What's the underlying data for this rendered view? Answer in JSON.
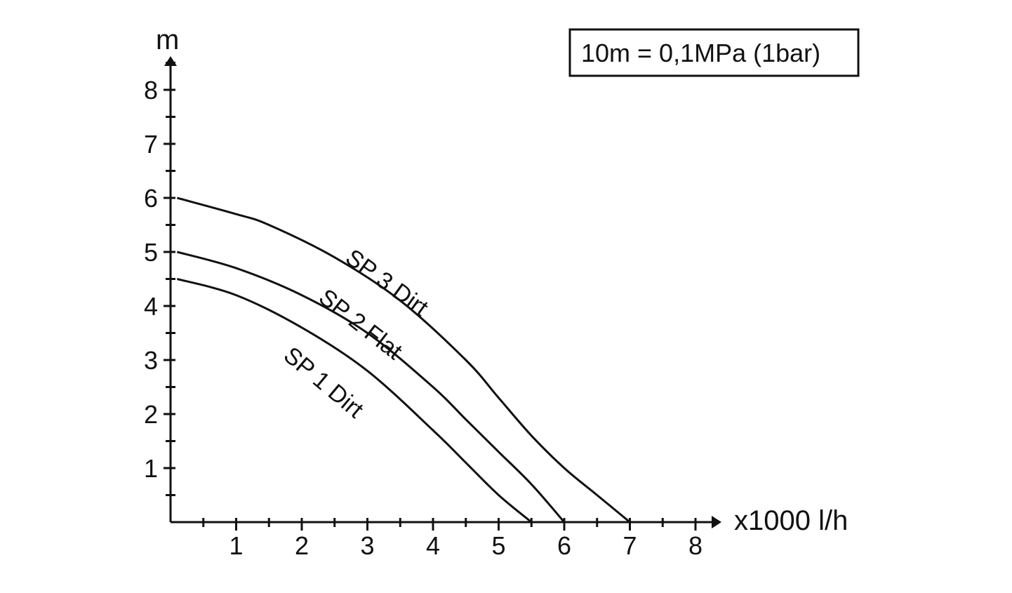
{
  "chart_data": {
    "type": "line",
    "xlabel": "x1000 l/h",
    "ylabel": "m",
    "xlim": [
      0,
      8.5
    ],
    "ylim": [
      0,
      8.5
    ],
    "x_ticks": [
      1,
      2,
      3,
      4,
      5,
      6,
      7,
      8
    ],
    "y_ticks": [
      1,
      2,
      3,
      4,
      5,
      6,
      7,
      8
    ],
    "x_tick_labels": [
      "1",
      "2",
      "3",
      "4",
      "5",
      "6",
      "7",
      "8"
    ],
    "y_tick_labels": [
      "1",
      "2",
      "3",
      "4",
      "5",
      "6",
      "7",
      "8"
    ],
    "annotation": "10m = 0,1MPa (1bar)",
    "grid": false,
    "series": [
      {
        "name": "SP 3 Dirt",
        "x": [
          0.1,
          1,
          1.5,
          2.5,
          3.5,
          4.5,
          5.0,
          5.5,
          6.0,
          6.5,
          7.0
        ],
        "y": [
          6.0,
          5.7,
          5.5,
          4.9,
          4.1,
          3.0,
          2.3,
          1.6,
          1.0,
          0.5,
          0.0
        ]
      },
      {
        "name": "SP 2 Flat",
        "x": [
          0.1,
          1,
          2,
          3,
          4,
          4.5,
          5.0,
          5.5,
          6.0
        ],
        "y": [
          5.0,
          4.7,
          4.2,
          3.5,
          2.5,
          1.9,
          1.3,
          0.7,
          0.0
        ]
      },
      {
        "name": "SP 1 Dirt",
        "x": [
          0.1,
          1,
          2,
          3,
          4,
          4.5,
          5.0,
          5.5
        ],
        "y": [
          4.5,
          4.2,
          3.6,
          2.8,
          1.7,
          1.1,
          0.5,
          0.0
        ]
      }
    ],
    "curve_labels": [
      {
        "text": "SP 3 Dirt",
        "series": "SP 3 Dirt"
      },
      {
        "text": "SP 2 Flat",
        "series": "SP 2 Flat"
      },
      {
        "text": "SP 1 Dirt",
        "series": "SP 1 Dirt"
      }
    ]
  }
}
